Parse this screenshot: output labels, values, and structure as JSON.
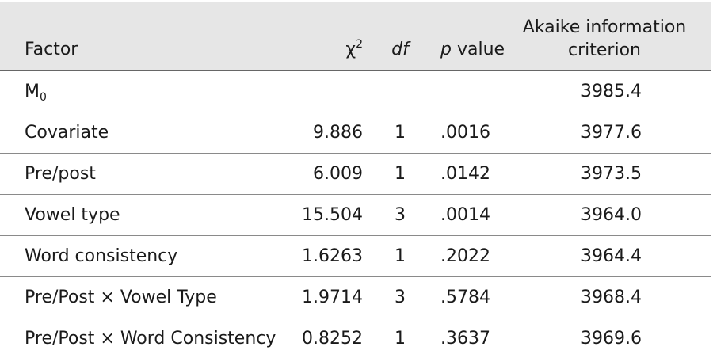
{
  "table": {
    "columns": {
      "factor": "Factor",
      "chi_symbol": "χ",
      "chi_sup": "2",
      "df": "df",
      "p_italic": "p",
      "p_rest": " value",
      "aic": "Akaike information criterion"
    },
    "m0": {
      "main": "M",
      "sub": "0",
      "aic": "3985.4"
    },
    "rows": [
      {
        "factor": "Covariate",
        "chi": "9.886",
        "df": "1",
        "p": ".0016",
        "aic": "3977.6"
      },
      {
        "factor": "Pre/post",
        "chi": "6.009",
        "df": "1",
        "p": ".0142",
        "aic": "3973.5"
      },
      {
        "factor": "Vowel type",
        "chi": "15.504",
        "df": "3",
        "p": ".0014",
        "aic": "3964.0"
      },
      {
        "factor": "Word consistency",
        "chi": "1.6263",
        "df": "1",
        "p": ".2022",
        "aic": "3964.4"
      },
      {
        "factor": "Pre/Post × Vowel Type",
        "chi": "1.9714",
        "df": "3",
        "p": ".5784",
        "aic": "3968.4"
      },
      {
        "factor": "Pre/Post × Word Consistency",
        "chi": "0.8252",
        "df": "1",
        "p": ".3637",
        "aic": "3969.6"
      }
    ]
  }
}
